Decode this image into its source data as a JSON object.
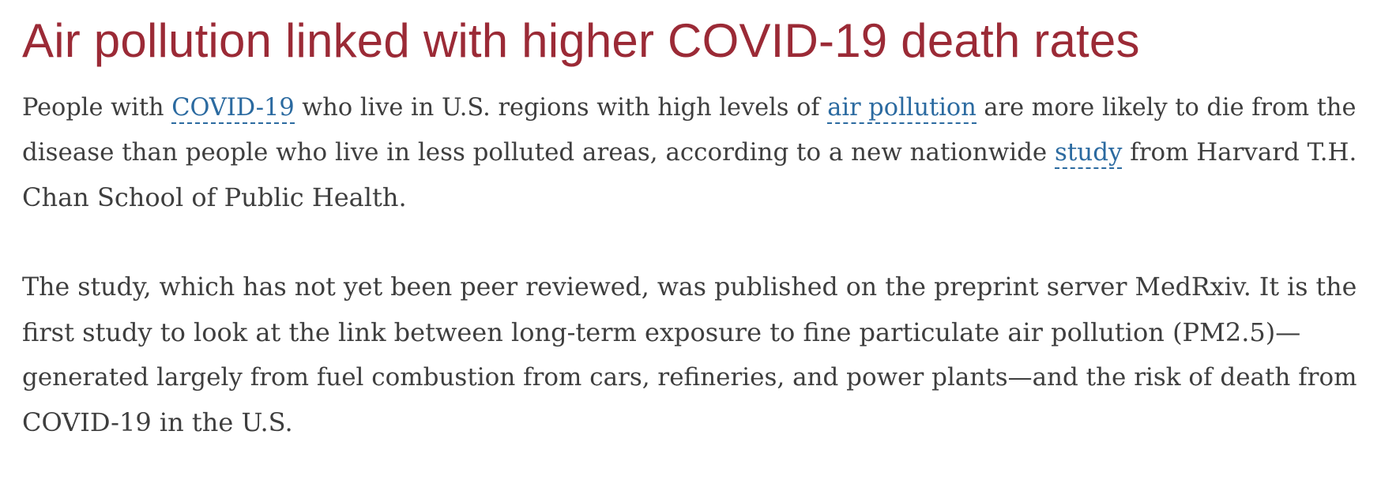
{
  "article": {
    "title": "Air pollution linked with higher COVID-19 death rates",
    "paragraph1": {
      "line1": {
        "t1": "People with ",
        "link1": "COVID-19",
        "t2": " who live in U.S. regions with high levels of ",
        "link2": "air pollution",
        "t3": " are more likely to die from the"
      },
      "line2": {
        "t1": "disease than people who live in less polluted areas, according to a new nationwide ",
        "link": "study",
        "t2": " from Harvard T.H."
      },
      "line3": "Chan School of Public Health."
    },
    "paragraph2": {
      "line1": "The study, which has not yet been peer reviewed, was published on the preprint server MedRxiv. It is the",
      "line2": "first study to look at the link between long-term exposure to fine particulate air pollution (PM2.5)—",
      "line3": "generated largely from fuel combustion from cars, refineries, and power plants—and the risk of death from",
      "line4": "COVID-19 in the U.S."
    }
  },
  "colors": {
    "title": "#9b2a36",
    "body_text": "#3e3e3e",
    "link": "#2b6aa0"
  }
}
